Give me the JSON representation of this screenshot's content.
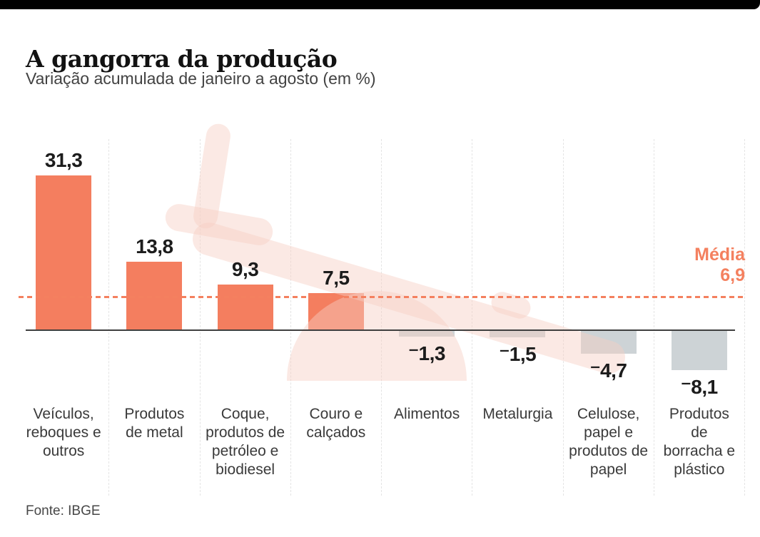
{
  "chart_data": {
    "type": "bar",
    "title": "A gangorra da produção",
    "subtitle": "Variação acumulada de janeiro a agosto (em %)",
    "categories": [
      "Veículos,\nreboques e\noutros",
      "Produtos\nde metal",
      "Coque,\nprodutos de\npetróleo e\nbiodiesel",
      "Couro e\ncalçados",
      "Alimentos",
      "Metalurgia",
      "Celulose,\npapel e\nprodutos de\npapel",
      "Produtos\nde\nborracha e\nplástico"
    ],
    "values": [
      31.3,
      13.8,
      9.3,
      7.5,
      -1.3,
      -1.5,
      -4.7,
      -8.1
    ],
    "value_labels": [
      "31,3",
      "13,8",
      "9,3",
      "7,5",
      "⁻1,3",
      "⁻1,5",
      "⁻4,7",
      "⁻8,1"
    ],
    "average": {
      "label": "Média",
      "value": 6.9,
      "value_label": "6,9"
    },
    "unit": "%",
    "positive_color": "#f47e5f",
    "negative_color": "#cdd3d6",
    "average_color": "#f4805f",
    "grid": "vertical-dashed",
    "legend_position": "none",
    "ylim": [
      -10,
      34
    ]
  },
  "source": "Fonte: IBGE",
  "watermark": "seesaw-illustration"
}
